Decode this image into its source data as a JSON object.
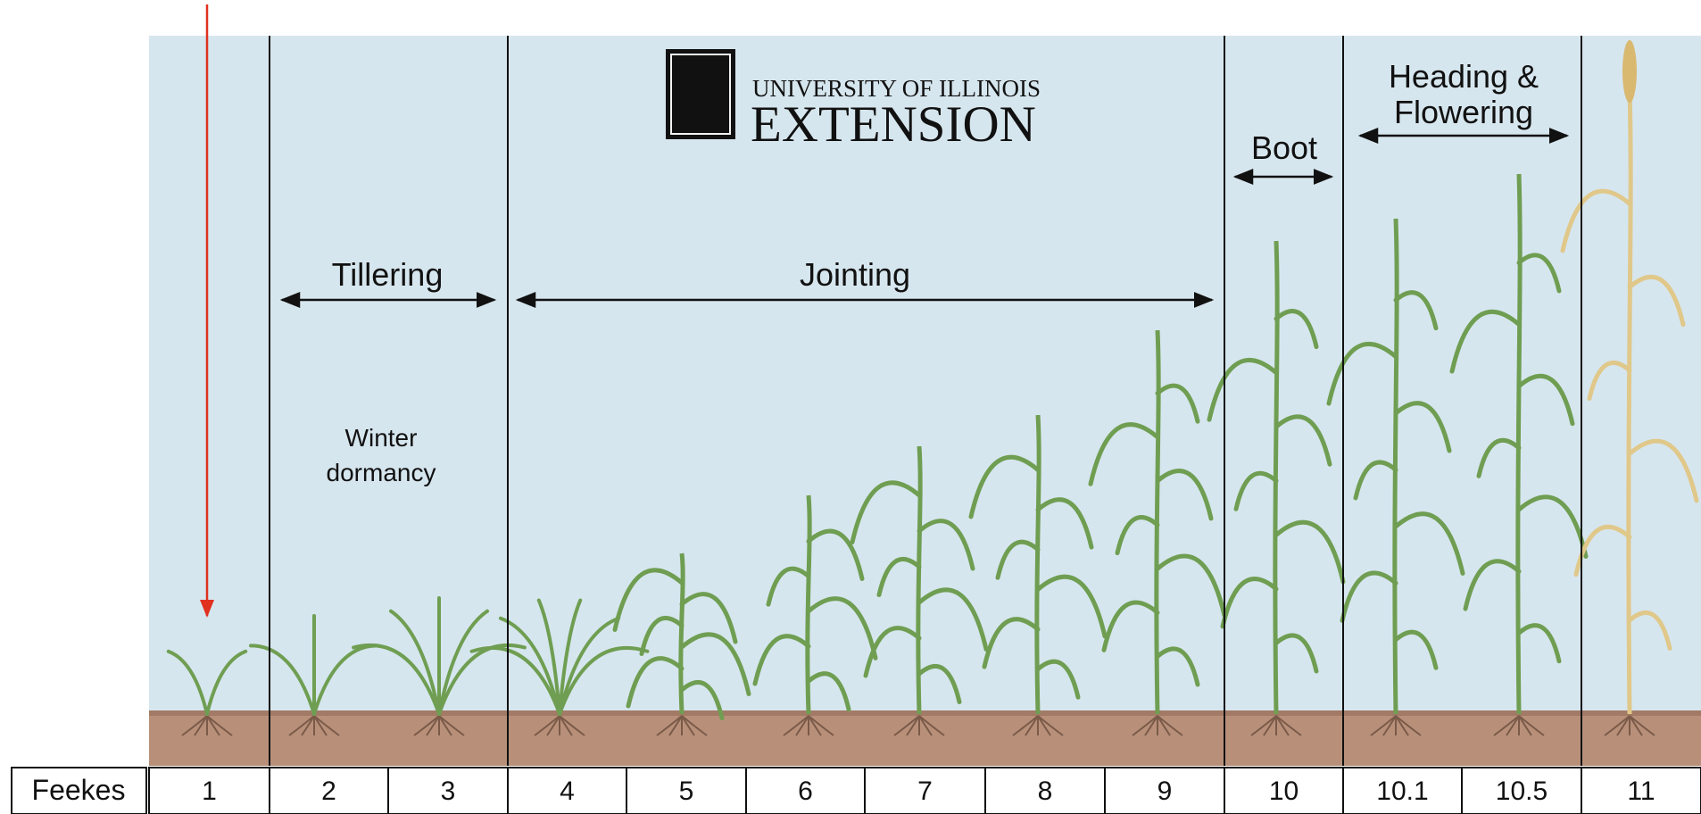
{
  "logo": {
    "mark": "I",
    "line1": "UNIVERSITY OF ILLINOIS",
    "line2": "EXTENSION"
  },
  "phases": {
    "tillering": "Tillering",
    "jointing": "Jointing",
    "boot": "Boot",
    "heading_line1": "Heading &",
    "heading_line2": "Flowering",
    "winter_line1": "Winter",
    "winter_line2": "dormancy"
  },
  "scale": {
    "header": "Feekes",
    "stages": [
      "1",
      "2",
      "3",
      "4",
      "5",
      "6",
      "7",
      "8",
      "9",
      "10",
      "10.1",
      "10.5",
      "11"
    ]
  },
  "colors": {
    "sky": "#d6e6ee",
    "soil": "#b8907a",
    "plant": "#6f9e52",
    "mature": "#e0c88a",
    "pointer": "#e03020"
  },
  "icons": [
    "pointer-arrow-icon",
    "double-arrow-icon",
    "wheat-plant-icon"
  ]
}
